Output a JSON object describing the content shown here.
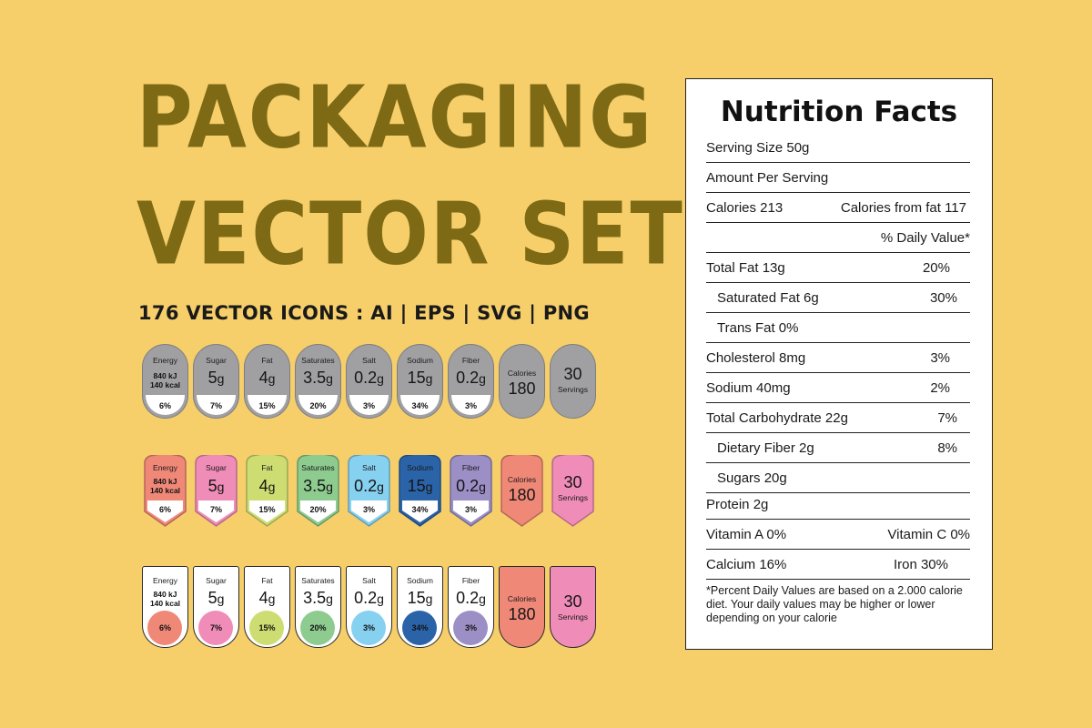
{
  "title": {
    "line1": "PACKAGING",
    "line2": "VECTOR SET"
  },
  "subtitle": "176 VECTOR ICONS : AI  | EPS | SVG | PNG",
  "badges": [
    {
      "label": "Energy",
      "kj": "840 kJ",
      "kcal": "140 kcal",
      "pct": "6%",
      "color": "#f08878"
    },
    {
      "label": "Sugar",
      "num": "5",
      "unit": "g",
      "pct": "7%",
      "color": "#f08cb8"
    },
    {
      "label": "Fat",
      "num": "4",
      "unit": "g",
      "pct": "15%",
      "color": "#cedd72"
    },
    {
      "label": "Saturates",
      "num": "3.5",
      "unit": "g",
      "pct": "20%",
      "color": "#8dcb8f"
    },
    {
      "label": "Salt",
      "num": "0.2",
      "unit": "g",
      "pct": "3%",
      "color": "#86d0f0"
    },
    {
      "label": "Sodium",
      "num": "15",
      "unit": "g",
      "pct": "34%",
      "color": "#2a63a8"
    },
    {
      "label": "Fiber",
      "num": "0.2",
      "unit": "g",
      "pct": "3%",
      "color": "#9b8fc5"
    }
  ],
  "calories_badge": {
    "label": "Calories",
    "value": "180",
    "color": "#f08878"
  },
  "servings_badge": {
    "value": "30",
    "label": "Servings",
    "color": "#f08cb8"
  },
  "grey_color": "#a0a0a3",
  "nutrition": {
    "heading": "Nutrition Facts",
    "serving_size": "Serving Size 50g",
    "amount_per_serving": "Amount Per Serving",
    "calories": "Calories 213",
    "calories_from_fat": "Calories from fat 117",
    "daily_value_header": "% Daily Value*",
    "total_fat": {
      "label": "Total Fat 13g",
      "pct": "20%"
    },
    "saturated_fat": {
      "label": "Saturated Fat 6g",
      "pct": "30%"
    },
    "trans_fat": {
      "label": "Trans Fat 0%"
    },
    "cholesterol": {
      "label": "Cholesterol 8mg",
      "pct": "3%"
    },
    "sodium": {
      "label": "Sodium 40mg",
      "pct": "2%"
    },
    "total_carbohydrate": {
      "label": "Total Carbohydrate 22g",
      "pct": "7%"
    },
    "dietary_fiber": {
      "label": "Dietary Fiber 2g",
      "pct": "8%"
    },
    "sugars": {
      "label": "Sugars 20g"
    },
    "protein": {
      "label": "Protein 2g"
    },
    "vitamin_a": "Vitamin A 0%",
    "vitamin_c": "Vitamin C 0%",
    "calcium": "Calcium 16%",
    "iron": "Iron 30%",
    "footnote": "*Percent Daily Values are based on a 2.000 calorie diet. Your daily values may be higher or lower depending on your calorie"
  }
}
